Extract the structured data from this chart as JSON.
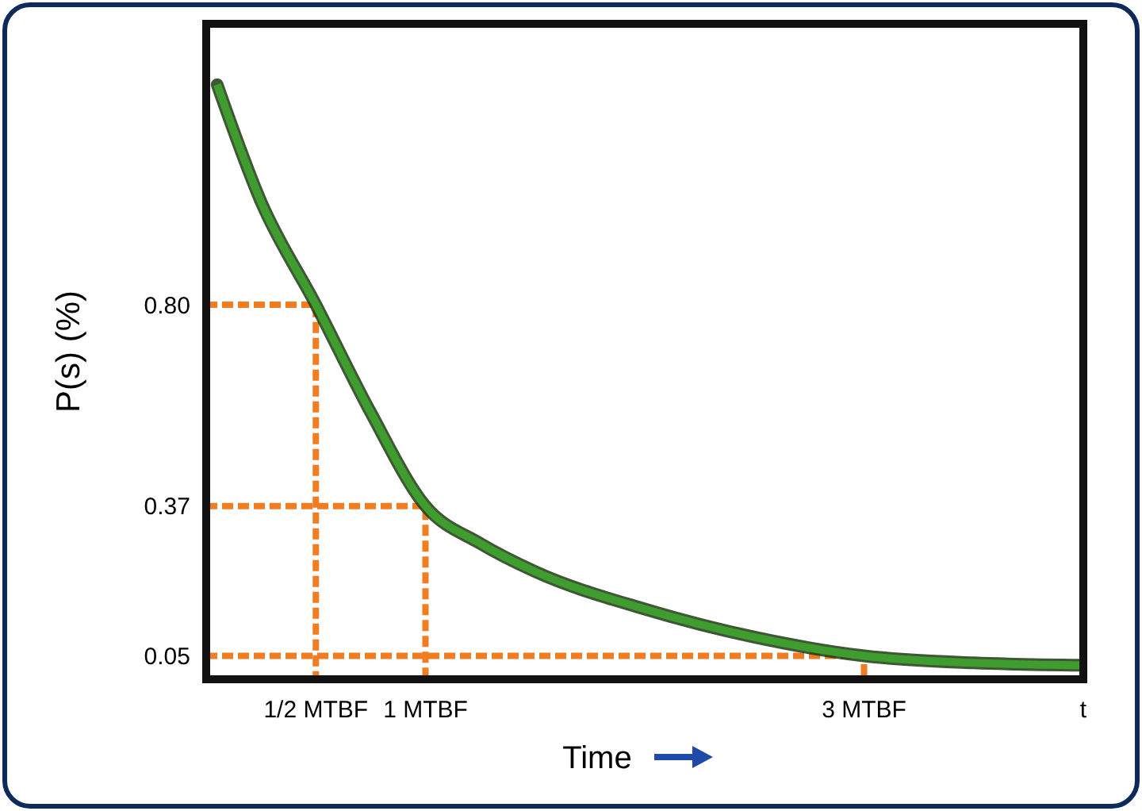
{
  "chart_data": {
    "type": "line",
    "xlabel": "Time",
    "ylabel": "P(s)  (%)",
    "xlim": [
      0,
      4
    ],
    "ylim": [
      0,
      1.4
    ],
    "xticks": [
      {
        "value": 0.5,
        "label": "1/2 MTBF"
      },
      {
        "value": 1,
        "label": "1 MTBF"
      },
      {
        "value": 3,
        "label": "3 MTBF"
      },
      {
        "value": 4,
        "label": "t"
      }
    ],
    "yticks": [
      {
        "value": 0.05,
        "label": "0.05"
      },
      {
        "value": 0.37,
        "label": "0.37"
      },
      {
        "value": 0.8,
        "label": "0.80"
      }
    ],
    "grid": false,
    "marker": "none",
    "series": [
      {
        "color": "#3f9c2e",
        "line_style": "solid",
        "x": [
          0.05,
          0.25,
          0.5,
          0.75,
          1,
          1.25,
          1.5,
          2,
          2.5,
          3,
          3.5,
          4
        ],
        "values": [
          1.27,
          1.02,
          0.8,
          0.57,
          0.37,
          0.29,
          0.23,
          0.15,
          0.09,
          0.05,
          0.035,
          0.03
        ]
      },
      {
        "color": "#f07d22",
        "line_style": "dashed",
        "x": [
          0,
          0.5,
          0.5
        ],
        "values": [
          0.8,
          0.8,
          0
        ]
      },
      {
        "color": "#f07d22",
        "line_style": "dashed",
        "x": [
          0,
          1,
          1
        ],
        "values": [
          0.37,
          0.37,
          0
        ]
      },
      {
        "color": "#f07d22",
        "line_style": "dashed",
        "x": [
          0,
          3,
          3
        ],
        "values": [
          0.05,
          0.05,
          0
        ]
      }
    ]
  }
}
